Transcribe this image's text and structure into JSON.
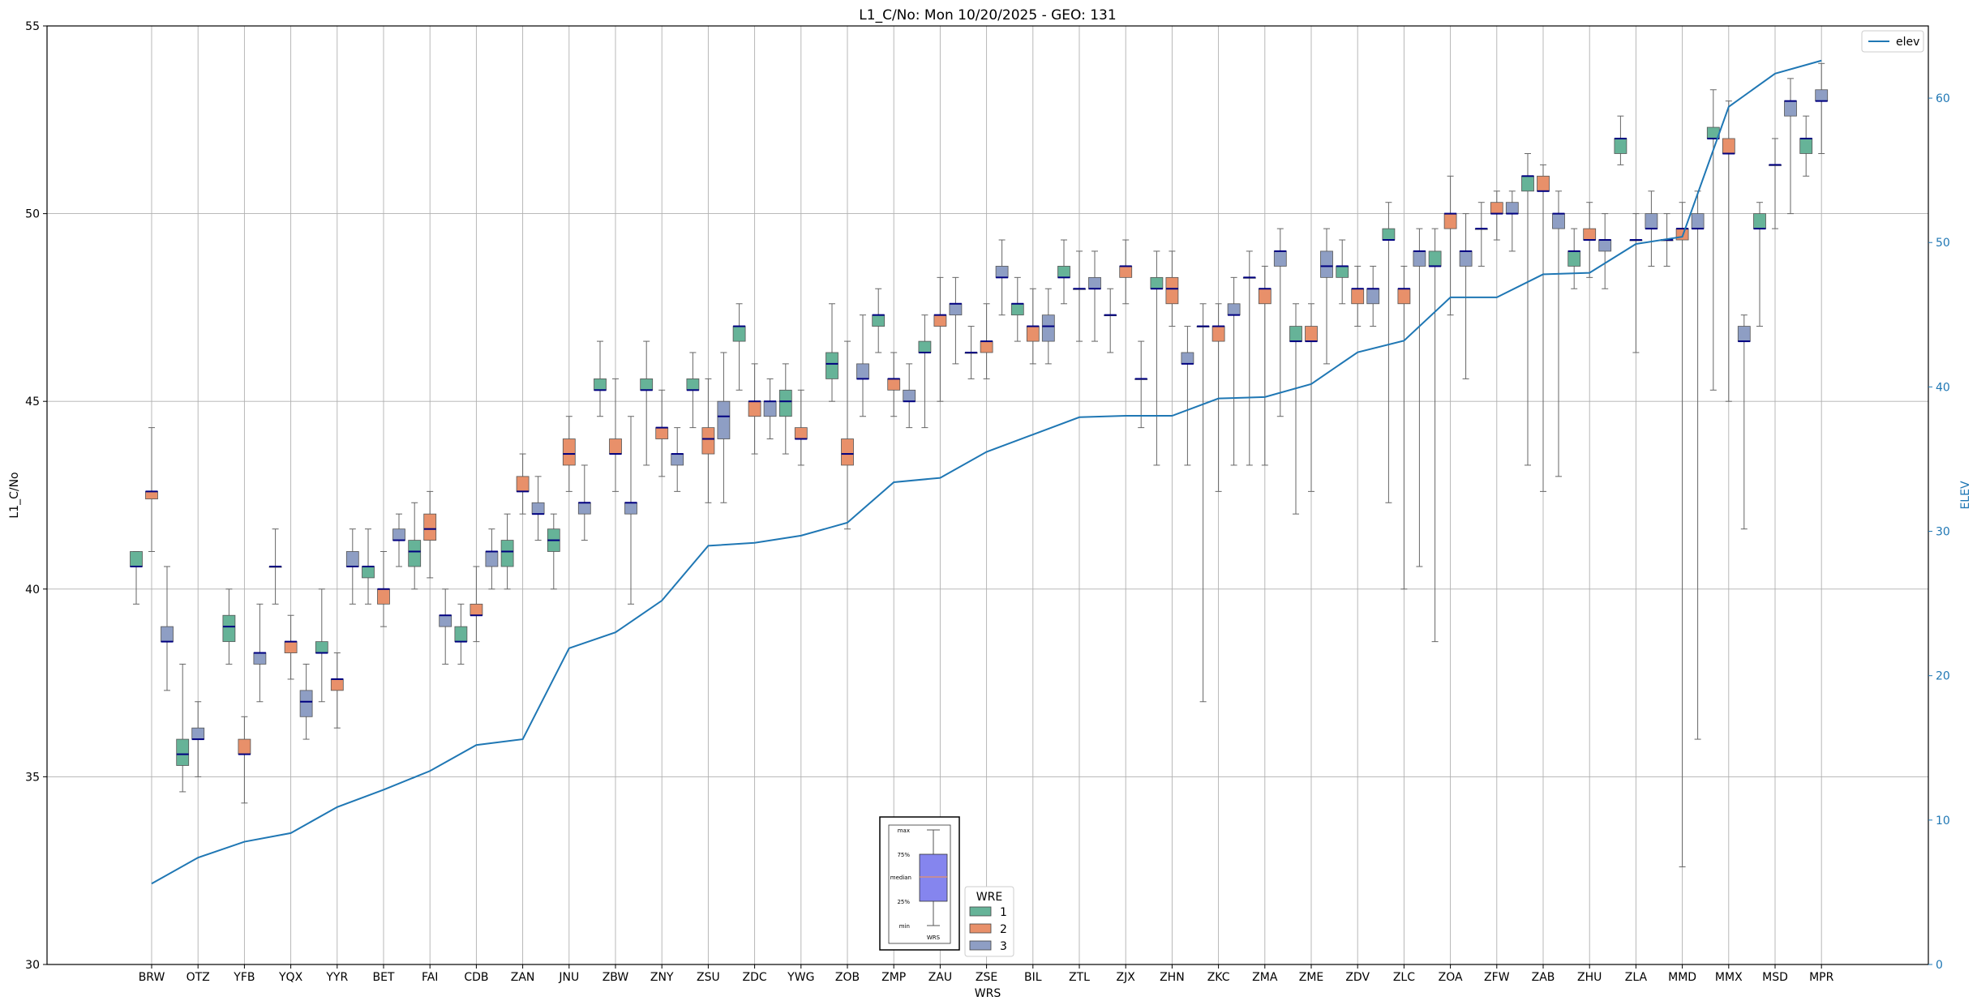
{
  "chart_data": {
    "type": "box",
    "title": "L1_C/No: Mon 10/20/2025 - GEO: 131",
    "xlabel": "WRS",
    "ylabel": "L1_C/No",
    "y2label": "ELEV",
    "ylim": [
      30,
      55
    ],
    "y2lim": [
      0,
      65
    ],
    "yticks": [
      "30",
      "35",
      "40",
      "45",
      "50",
      "55"
    ],
    "y2ticks": [
      "0",
      "10",
      "20",
      "30",
      "40",
      "50",
      "60"
    ],
    "grid": true,
    "categories": [
      "BRW",
      "OTZ",
      "YFB",
      "YQX",
      "YYR",
      "BET",
      "FAI",
      "CDB",
      "ZAN",
      "JNU",
      "ZBW",
      "ZNY",
      "ZSU",
      "ZDC",
      "YWG",
      "ZOB",
      "ZMP",
      "ZAU",
      "ZSE",
      "BIL",
      "ZTL",
      "ZJX",
      "ZHN",
      "ZKC",
      "ZMA",
      "ZME",
      "ZDV",
      "ZLC",
      "ZOA",
      "ZFW",
      "ZAB",
      "ZHU",
      "ZLA",
      "MMD",
      "MMX",
      "MSD",
      "MPR"
    ],
    "series_colors": {
      "1": "#66b398",
      "2": "#e8906a",
      "3": "#8e9ec4"
    },
    "boxes": [
      {
        "site": "BRW",
        "wre": "1",
        "min": 39.6,
        "q1": 40.6,
        "median": 40.6,
        "q3": 41.0,
        "max": 41.0
      },
      {
        "site": "BRW",
        "wre": "2",
        "min": 41.0,
        "q1": 42.4,
        "median": 42.6,
        "q3": 42.6,
        "max": 44.3
      },
      {
        "site": "BRW",
        "wre": "3",
        "min": 37.3,
        "q1": 38.6,
        "median": 38.6,
        "q3": 39.0,
        "max": 40.6
      },
      {
        "site": "OTZ",
        "wre": "1",
        "min": 34.6,
        "q1": 35.3,
        "median": 35.6,
        "q3": 36.0,
        "max": 38.0
      },
      {
        "site": "OTZ",
        "wre": "3",
        "min": 35.0,
        "q1": 36.0,
        "median": 36.0,
        "q3": 36.3,
        "max": 37.0
      },
      {
        "site": "YFB",
        "wre": "1",
        "min": 38.0,
        "q1": 38.6,
        "median": 39.0,
        "q3": 39.3,
        "max": 40.0
      },
      {
        "site": "YFB",
        "wre": "2",
        "min": 34.3,
        "q1": 35.6,
        "median": 35.6,
        "q3": 36.0,
        "max": 36.6
      },
      {
        "site": "YFB",
        "wre": "3",
        "min": 37.0,
        "q1": 38.0,
        "median": 38.3,
        "q3": 38.3,
        "max": 39.6
      },
      {
        "site": "YQX",
        "wre": "3",
        "min": 39.6,
        "q1": 40.6,
        "median": 40.6,
        "q3": 40.6,
        "max": 41.6
      },
      {
        "site": "YQX",
        "wre": "2",
        "min": 37.6,
        "q1": 38.3,
        "median": 38.6,
        "q3": 38.6,
        "max": 39.3
      },
      {
        "site": "YQX",
        "wre": "3",
        "min": 36.0,
        "q1": 36.6,
        "median": 37.0,
        "q3": 37.3,
        "max": 38.0
      },
      {
        "site": "YYR",
        "wre": "1",
        "min": 37.0,
        "q1": 38.3,
        "median": 38.3,
        "q3": 38.6,
        "max": 40.0
      },
      {
        "site": "YYR",
        "wre": "2",
        "min": 36.3,
        "q1": 37.3,
        "median": 37.6,
        "q3": 37.6,
        "max": 38.3
      },
      {
        "site": "YYR",
        "wre": "3",
        "min": 39.6,
        "q1": 40.6,
        "median": 40.6,
        "q3": 41.0,
        "max": 41.6
      },
      {
        "site": "BET",
        "wre": "1",
        "min": 39.6,
        "q1": 40.3,
        "median": 40.6,
        "q3": 40.6,
        "max": 41.6
      },
      {
        "site": "BET",
        "wre": "2",
        "min": 39.0,
        "q1": 39.6,
        "median": 40.0,
        "q3": 40.0,
        "max": 41.0
      },
      {
        "site": "BET",
        "wre": "3",
        "min": 40.6,
        "q1": 41.3,
        "median": 41.3,
        "q3": 41.6,
        "max": 42.0
      },
      {
        "site": "FAI",
        "wre": "1",
        "min": 40.0,
        "q1": 40.6,
        "median": 41.0,
        "q3": 41.3,
        "max": 42.3
      },
      {
        "site": "FAI",
        "wre": "2",
        "min": 40.3,
        "q1": 41.3,
        "median": 41.6,
        "q3": 42.0,
        "max": 42.6
      },
      {
        "site": "FAI",
        "wre": "3",
        "min": 38.0,
        "q1": 39.0,
        "median": 39.3,
        "q3": 39.3,
        "max": 40.0
      },
      {
        "site": "CDB",
        "wre": "1",
        "min": 38.0,
        "q1": 38.6,
        "median": 38.6,
        "q3": 39.0,
        "max": 39.6
      },
      {
        "site": "CDB",
        "wre": "2",
        "min": 38.6,
        "q1": 39.3,
        "median": 39.3,
        "q3": 39.6,
        "max": 40.6
      },
      {
        "site": "CDB",
        "wre": "3",
        "min": 40.0,
        "q1": 40.6,
        "median": 41.0,
        "q3": 41.0,
        "max": 41.6
      },
      {
        "site": "ZAN",
        "wre": "1",
        "min": 40.0,
        "q1": 40.6,
        "median": 41.0,
        "q3": 41.3,
        "max": 42.0
      },
      {
        "site": "ZAN",
        "wre": "2",
        "min": 42.0,
        "q1": 42.6,
        "median": 42.6,
        "q3": 43.0,
        "max": 43.6
      },
      {
        "site": "ZAN",
        "wre": "3",
        "min": 41.3,
        "q1": 42.0,
        "median": 42.0,
        "q3": 42.3,
        "max": 43.0
      },
      {
        "site": "JNU",
        "wre": "1",
        "min": 40.0,
        "q1": 41.0,
        "median": 41.3,
        "q3": 41.6,
        "max": 42.0
      },
      {
        "site": "JNU",
        "wre": "2",
        "min": 42.6,
        "q1": 43.3,
        "median": 43.6,
        "q3": 44.0,
        "max": 44.6
      },
      {
        "site": "JNU",
        "wre": "3",
        "min": 41.3,
        "q1": 42.0,
        "median": 42.3,
        "q3": 42.3,
        "max": 43.3
      },
      {
        "site": "ZBW",
        "wre": "1",
        "min": 44.6,
        "q1": 45.3,
        "median": 45.3,
        "q3": 45.6,
        "max": 46.6
      },
      {
        "site": "ZBW",
        "wre": "2",
        "min": 42.6,
        "q1": 43.6,
        "median": 43.6,
        "q3": 44.0,
        "max": 45.6
      },
      {
        "site": "ZBW",
        "wre": "3",
        "min": 39.6,
        "q1": 42.0,
        "median": 42.3,
        "q3": 42.3,
        "max": 44.6
      },
      {
        "site": "ZNY",
        "wre": "1",
        "min": 43.3,
        "q1": 45.3,
        "median": 45.3,
        "q3": 45.6,
        "max": 46.6
      },
      {
        "site": "ZNY",
        "wre": "2",
        "min": 43.0,
        "q1": 44.0,
        "median": 44.3,
        "q3": 44.3,
        "max": 45.3
      },
      {
        "site": "ZNY",
        "wre": "3",
        "min": 42.6,
        "q1": 43.3,
        "median": 43.6,
        "q3": 43.6,
        "max": 44.3
      },
      {
        "site": "ZSU",
        "wre": "1",
        "min": 44.3,
        "q1": 45.3,
        "median": 45.3,
        "q3": 45.6,
        "max": 46.3
      },
      {
        "site": "ZSU",
        "wre": "2",
        "min": 42.3,
        "q1": 43.6,
        "median": 44.0,
        "q3": 44.3,
        "max": 45.6
      },
      {
        "site": "ZSU",
        "wre": "3",
        "min": 42.3,
        "q1": 44.0,
        "median": 44.6,
        "q3": 45.0,
        "max": 46.3
      },
      {
        "site": "ZDC",
        "wre": "1",
        "min": 45.3,
        "q1": 46.6,
        "median": 47.0,
        "q3": 47.0,
        "max": 47.6
      },
      {
        "site": "ZDC",
        "wre": "2",
        "min": 43.6,
        "q1": 44.6,
        "median": 45.0,
        "q3": 45.0,
        "max": 46.0
      },
      {
        "site": "ZDC",
        "wre": "3",
        "min": 44.0,
        "q1": 44.6,
        "median": 45.0,
        "q3": 45.0,
        "max": 45.6
      },
      {
        "site": "YWG",
        "wre": "1",
        "min": 43.6,
        "q1": 44.6,
        "median": 45.0,
        "q3": 45.3,
        "max": 46.0
      },
      {
        "site": "YWG",
        "wre": "2",
        "min": 43.3,
        "q1": 44.0,
        "median": 44.0,
        "q3": 44.3,
        "max": 45.3
      },
      {
        "site": "ZOB",
        "wre": "1",
        "min": 45.0,
        "q1": 45.6,
        "median": 46.0,
        "q3": 46.3,
        "max": 47.6
      },
      {
        "site": "ZOB",
        "wre": "2",
        "min": 41.6,
        "q1": 43.3,
        "median": 43.6,
        "q3": 44.0,
        "max": 46.6
      },
      {
        "site": "ZOB",
        "wre": "3",
        "min": 44.6,
        "q1": 45.6,
        "median": 45.6,
        "q3": 46.0,
        "max": 47.3
      },
      {
        "site": "ZMP",
        "wre": "1",
        "min": 46.3,
        "q1": 47.0,
        "median": 47.3,
        "q3": 47.3,
        "max": 48.0
      },
      {
        "site": "ZMP",
        "wre": "2",
        "min": 44.6,
        "q1": 45.3,
        "median": 45.6,
        "q3": 45.6,
        "max": 46.3
      },
      {
        "site": "ZMP",
        "wre": "3",
        "min": 44.3,
        "q1": 45.0,
        "median": 45.0,
        "q3": 45.3,
        "max": 46.0
      },
      {
        "site": "ZAU",
        "wre": "1",
        "min": 44.3,
        "q1": 46.3,
        "median": 46.3,
        "q3": 46.6,
        "max": 47.3
      },
      {
        "site": "ZAU",
        "wre": "2",
        "min": 45.0,
        "q1": 47.0,
        "median": 47.3,
        "q3": 47.3,
        "max": 48.3
      },
      {
        "site": "ZAU",
        "wre": "3",
        "min": 46.0,
        "q1": 47.3,
        "median": 47.6,
        "q3": 47.6,
        "max": 48.3
      },
      {
        "site": "ZSE",
        "wre": "3",
        "min": 45.6,
        "q1": 46.3,
        "median": 46.3,
        "q3": 46.3,
        "max": 47.0
      },
      {
        "site": "ZSE",
        "wre": "2",
        "min": 45.6,
        "q1": 46.3,
        "median": 46.6,
        "q3": 46.6,
        "max": 47.6
      },
      {
        "site": "ZSE",
        "wre": "3",
        "min": 47.3,
        "q1": 48.3,
        "median": 48.3,
        "q3": 48.6,
        "max": 49.3
      },
      {
        "site": "BIL",
        "wre": "1",
        "min": 46.6,
        "q1": 47.3,
        "median": 47.6,
        "q3": 47.6,
        "max": 48.3
      },
      {
        "site": "BIL",
        "wre": "2",
        "min": 46.0,
        "q1": 46.6,
        "median": 47.0,
        "q3": 47.0,
        "max": 48.0
      },
      {
        "site": "BIL",
        "wre": "3",
        "min": 46.0,
        "q1": 46.6,
        "median": 47.0,
        "q3": 47.3,
        "max": 48.0
      },
      {
        "site": "ZTL",
        "wre": "1",
        "min": 47.6,
        "q1": 48.3,
        "median": 48.3,
        "q3": 48.6,
        "max": 49.3
      },
      {
        "site": "ZTL",
        "wre": "3",
        "min": 46.6,
        "q1": 48.0,
        "median": 48.0,
        "q3": 48.0,
        "max": 49.0
      },
      {
        "site": "ZTL",
        "wre": "3",
        "min": 46.6,
        "q1": 48.0,
        "median": 48.0,
        "q3": 48.3,
        "max": 49.0
      },
      {
        "site": "ZJX",
        "wre": "3",
        "min": 46.3,
        "q1": 47.3,
        "median": 47.3,
        "q3": 47.3,
        "max": 48.0
      },
      {
        "site": "ZJX",
        "wre": "2",
        "min": 47.6,
        "q1": 48.3,
        "median": 48.6,
        "q3": 48.6,
        "max": 49.3
      },
      {
        "site": "ZJX",
        "wre": "3",
        "min": 44.3,
        "q1": 45.6,
        "median": 45.6,
        "q3": 45.6,
        "max": 46.6
      },
      {
        "site": "ZHN",
        "wre": "1",
        "min": 43.3,
        "q1": 48.0,
        "median": 48.0,
        "q3": 48.3,
        "max": 49.0
      },
      {
        "site": "ZHN",
        "wre": "2",
        "min": 47.0,
        "q1": 47.6,
        "median": 48.0,
        "q3": 48.3,
        "max": 49.0
      },
      {
        "site": "ZHN",
        "wre": "3",
        "min": 43.3,
        "q1": 46.0,
        "median": 46.0,
        "q3": 46.3,
        "max": 47.0
      },
      {
        "site": "ZKC",
        "wre": "3",
        "min": 37.0,
        "q1": 47.0,
        "median": 47.0,
        "q3": 47.0,
        "max": 47.6
      },
      {
        "site": "ZKC",
        "wre": "2",
        "min": 42.6,
        "q1": 46.6,
        "median": 47.0,
        "q3": 47.0,
        "max": 47.6
      },
      {
        "site": "ZKC",
        "wre": "3",
        "min": 43.3,
        "q1": 47.3,
        "median": 47.3,
        "q3": 47.6,
        "max": 48.3
      },
      {
        "site": "ZMA",
        "wre": "3",
        "min": 43.3,
        "q1": 48.3,
        "median": 48.3,
        "q3": 48.3,
        "max": 49.0
      },
      {
        "site": "ZMA",
        "wre": "2",
        "min": 43.3,
        "q1": 47.6,
        "median": 48.0,
        "q3": 48.0,
        "max": 48.6
      },
      {
        "site": "ZMA",
        "wre": "3",
        "min": 44.6,
        "q1": 48.6,
        "median": 49.0,
        "q3": 49.0,
        "max": 49.6
      },
      {
        "site": "ZME",
        "wre": "1",
        "min": 42.0,
        "q1": 46.6,
        "median": 46.6,
        "q3": 47.0,
        "max": 47.6
      },
      {
        "site": "ZME",
        "wre": "2",
        "min": 42.6,
        "q1": 46.6,
        "median": 46.6,
        "q3": 47.0,
        "max": 47.6
      },
      {
        "site": "ZME",
        "wre": "3",
        "min": 46.0,
        "q1": 48.3,
        "median": 48.6,
        "q3": 49.0,
        "max": 49.6
      },
      {
        "site": "ZDV",
        "wre": "1",
        "min": 47.6,
        "q1": 48.3,
        "median": 48.6,
        "q3": 48.6,
        "max": 49.3
      },
      {
        "site": "ZDV",
        "wre": "2",
        "min": 47.0,
        "q1": 47.6,
        "median": 48.0,
        "q3": 48.0,
        "max": 48.6
      },
      {
        "site": "ZDV",
        "wre": "3",
        "min": 47.0,
        "q1": 47.6,
        "median": 48.0,
        "q3": 48.0,
        "max": 48.6
      },
      {
        "site": "ZLC",
        "wre": "1",
        "min": 42.3,
        "q1": 49.3,
        "median": 49.3,
        "q3": 49.6,
        "max": 50.3
      },
      {
        "site": "ZLC",
        "wre": "2",
        "min": 40.0,
        "q1": 47.6,
        "median": 48.0,
        "q3": 48.0,
        "max": 48.6
      },
      {
        "site": "ZLC",
        "wre": "3",
        "min": 40.6,
        "q1": 48.6,
        "median": 49.0,
        "q3": 49.0,
        "max": 49.6
      },
      {
        "site": "ZOA",
        "wre": "1",
        "min": 38.6,
        "q1": 48.6,
        "median": 48.6,
        "q3": 49.0,
        "max": 49.6
      },
      {
        "site": "ZOA",
        "wre": "2",
        "min": 47.3,
        "q1": 49.6,
        "median": 50.0,
        "q3": 50.0,
        "max": 51.0
      },
      {
        "site": "ZOA",
        "wre": "3",
        "min": 45.6,
        "q1": 48.6,
        "median": 49.0,
        "q3": 49.0,
        "max": 50.0
      },
      {
        "site": "ZFW",
        "wre": "3",
        "min": 48.6,
        "q1": 49.6,
        "median": 49.6,
        "q3": 49.6,
        "max": 50.3
      },
      {
        "site": "ZFW",
        "wre": "2",
        "min": 49.3,
        "q1": 50.0,
        "median": 50.0,
        "q3": 50.3,
        "max": 50.6
      },
      {
        "site": "ZFW",
        "wre": "3",
        "min": 49.0,
        "q1": 50.0,
        "median": 50.0,
        "q3": 50.3,
        "max": 50.6
      },
      {
        "site": "ZAB",
        "wre": "1",
        "min": 43.3,
        "q1": 50.6,
        "median": 51.0,
        "q3": 51.0,
        "max": 51.6
      },
      {
        "site": "ZAB",
        "wre": "2",
        "min": 42.6,
        "q1": 50.6,
        "median": 50.6,
        "q3": 51.0,
        "max": 51.3
      },
      {
        "site": "ZAB",
        "wre": "3",
        "min": 43.0,
        "q1": 49.6,
        "median": 50.0,
        "q3": 50.0,
        "max": 50.6
      },
      {
        "site": "ZHU",
        "wre": "1",
        "min": 48.0,
        "q1": 48.6,
        "median": 49.0,
        "q3": 49.0,
        "max": 49.6
      },
      {
        "site": "ZHU",
        "wre": "2",
        "min": 48.3,
        "q1": 49.3,
        "median": 49.3,
        "q3": 49.6,
        "max": 50.3
      },
      {
        "site": "ZHU",
        "wre": "3",
        "min": 48.0,
        "q1": 49.0,
        "median": 49.3,
        "q3": 49.3,
        "max": 50.0
      },
      {
        "site": "ZLA",
        "wre": "1",
        "min": 51.3,
        "q1": 51.6,
        "median": 52.0,
        "q3": 52.0,
        "max": 52.6
      },
      {
        "site": "ZLA",
        "wre": "3",
        "min": 46.3,
        "q1": 49.3,
        "median": 49.3,
        "q3": 49.3,
        "max": 50.0
      },
      {
        "site": "ZLA",
        "wre": "3",
        "min": 48.6,
        "q1": 49.6,
        "median": 49.6,
        "q3": 50.0,
        "max": 50.6
      },
      {
        "site": "MMD",
        "wre": "3",
        "min": 48.6,
        "q1": 49.3,
        "median": 49.3,
        "q3": 49.3,
        "max": 50.0
      },
      {
        "site": "MMD",
        "wre": "2",
        "min": 32.6,
        "q1": 49.3,
        "median": 49.6,
        "q3": 49.6,
        "max": 50.3
      },
      {
        "site": "MMD",
        "wre": "3",
        "min": 36.0,
        "q1": 49.6,
        "median": 49.6,
        "q3": 50.0,
        "max": 50.6
      },
      {
        "site": "MMX",
        "wre": "1",
        "min": 45.3,
        "q1": 52.0,
        "median": 52.0,
        "q3": 52.3,
        "max": 53.3
      },
      {
        "site": "MMX",
        "wre": "2",
        "min": 45.0,
        "q1": 51.6,
        "median": 51.6,
        "q3": 52.0,
        "max": 53.0
      },
      {
        "site": "MMX",
        "wre": "3",
        "min": 41.6,
        "q1": 46.6,
        "median": 46.6,
        "q3": 47.0,
        "max": 47.3
      },
      {
        "site": "MSD",
        "wre": "1",
        "min": 47.0,
        "q1": 49.6,
        "median": 49.6,
        "q3": 50.0,
        "max": 50.3
      },
      {
        "site": "MSD",
        "wre": "3",
        "min": 49.6,
        "q1": 51.3,
        "median": 51.3,
        "q3": 51.3,
        "max": 52.0
      },
      {
        "site": "MSD",
        "wre": "3",
        "min": 50.0,
        "q1": 52.6,
        "median": 53.0,
        "q3": 53.0,
        "max": 53.6
      },
      {
        "site": "MPR",
        "wre": "1",
        "min": 51.0,
        "q1": 51.6,
        "median": 52.0,
        "q3": 52.0,
        "max": 52.6
      },
      {
        "site": "MPR",
        "wre": "3",
        "min": 51.6,
        "q1": 53.0,
        "median": 53.0,
        "q3": 53.3,
        "max": 54.0
      }
    ],
    "elev_series": {
      "name": "elev",
      "color": "#1f77b4",
      "values": [
        5.6,
        7.4,
        8.5,
        9.1,
        10.9,
        12.1,
        13.4,
        15.2,
        15.6,
        21.9,
        23.0,
        25.2,
        29.0,
        29.2,
        29.7,
        30.6,
        33.4,
        33.7,
        35.5,
        36.7,
        37.9,
        38.0,
        38.0,
        39.2,
        39.3,
        40.2,
        42.4,
        43.2,
        46.2,
        46.2,
        47.8,
        47.9,
        49.9,
        50.4,
        59.4,
        61.7,
        62.6
      ]
    },
    "legend_elev": {
      "label": "elev",
      "position": "top-right"
    },
    "legend_wre": {
      "title": "WRE",
      "items": [
        "1",
        "2",
        "3"
      ],
      "position": "bottom-center"
    },
    "legend_box_key": {
      "labels": [
        "max",
        "75%",
        "median",
        "25%",
        "min"
      ],
      "caption": "WRS"
    }
  }
}
